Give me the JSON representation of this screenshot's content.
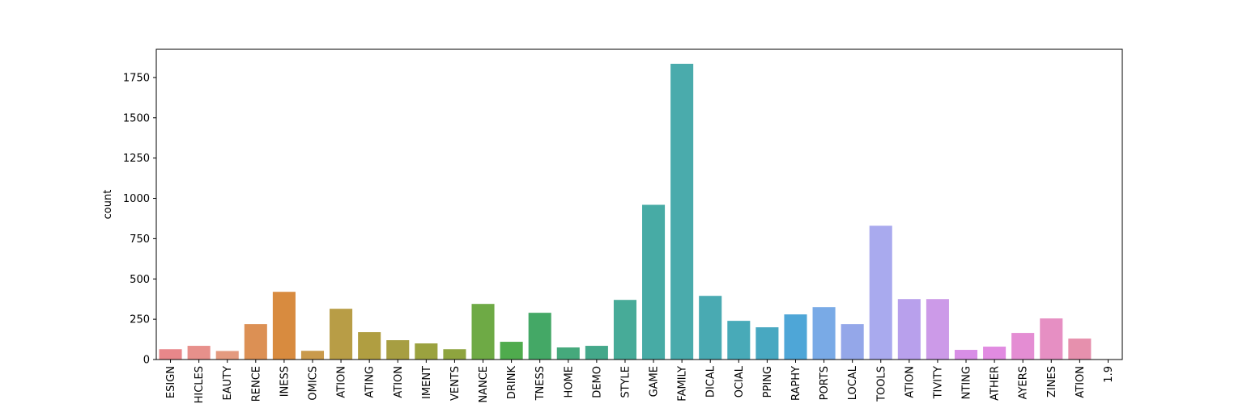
{
  "chart_data": {
    "type": "bar",
    "title": "",
    "xlabel": "",
    "ylabel": "count",
    "ylim": [
      0,
      1925
    ],
    "yticks": [
      0,
      250,
      500,
      750,
      1000,
      1250,
      1500,
      1750
    ],
    "grid": false,
    "legend": "none",
    "categories": [
      "ESIGN",
      "HICLES",
      "EAUTY",
      "RENCE",
      "INESS",
      "OMICS",
      "ATION",
      "ATING",
      "ATION",
      "IMENT",
      "VENTS",
      "NANCE",
      "DRINK",
      "TNESS",
      "HOME",
      "DEMO",
      "STYLE",
      "GAME",
      "FAMILY",
      "DICAL",
      "OCIAL",
      "PPING",
      "RAPHY",
      "PORTS",
      "LOCAL",
      "TOOLS",
      "ATION",
      "TIVITY",
      "NTING",
      "ATHER",
      "AYERS",
      "ZINES",
      "ATION",
      "1.9"
    ],
    "values": [
      64,
      85,
      53,
      220,
      420,
      54,
      315,
      170,
      120,
      100,
      64,
      345,
      110,
      290,
      75,
      85,
      370,
      960,
      1835,
      395,
      240,
      200,
      280,
      325,
      220,
      830,
      375,
      375,
      60,
      80,
      165,
      255,
      130,
      1
    ],
    "colors": [
      "#e8878a",
      "#e7908b",
      "#e49a7f",
      "#dc9054",
      "#d88b3f",
      "#c99a4c",
      "#b89d46",
      "#b09e41",
      "#a79e42",
      "#9ba23f",
      "#8ea43f",
      "#6eaa45",
      "#4fab4d",
      "#44a866",
      "#45a97c",
      "#44a88a",
      "#47ab98",
      "#47aba5",
      "#4aabac",
      "#49aab2",
      "#48aab8",
      "#48a8c1",
      "#4ea6d7",
      "#79aae6",
      "#94a7e9",
      "#a9aaee",
      "#b8a0ec",
      "#cc9ae8",
      "#d88ee6",
      "#e18be1",
      "#e48dd3",
      "#e68fc3",
      "#e690ad",
      "#e88f9b"
    ]
  }
}
